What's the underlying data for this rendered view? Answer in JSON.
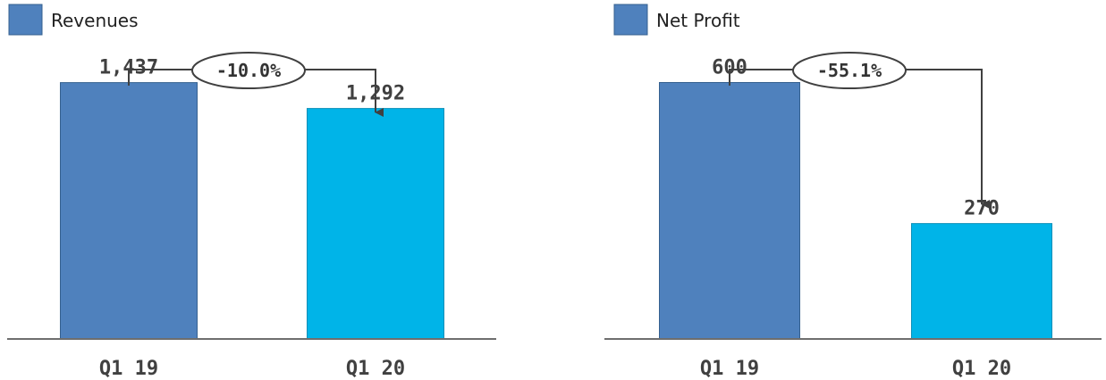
{
  "colors": {
    "q1_19": "#4f81bd",
    "q1_20": "#00b4e8",
    "axis": "#6e6e6e",
    "arrow": "#404040"
  },
  "chart_data": [
    {
      "type": "bar",
      "legend": "Revenues",
      "legend_position": "top-left",
      "categories": [
        "Q1 19",
        "Q1 20"
      ],
      "values": [
        1437,
        1292
      ],
      "value_labels": [
        "1,437",
        "1,292"
      ],
      "change_label": "-10.0%",
      "ylim": [
        0,
        1900
      ],
      "grid": false
    },
    {
      "type": "bar",
      "legend": "Net Profit",
      "legend_position": "top-left",
      "categories": [
        "Q1 19",
        "Q1 20"
      ],
      "values": [
        600,
        270
      ],
      "value_labels": [
        "600",
        "270"
      ],
      "change_label": "-55.1%",
      "ylim": [
        0,
        793
      ],
      "grid": false
    }
  ]
}
